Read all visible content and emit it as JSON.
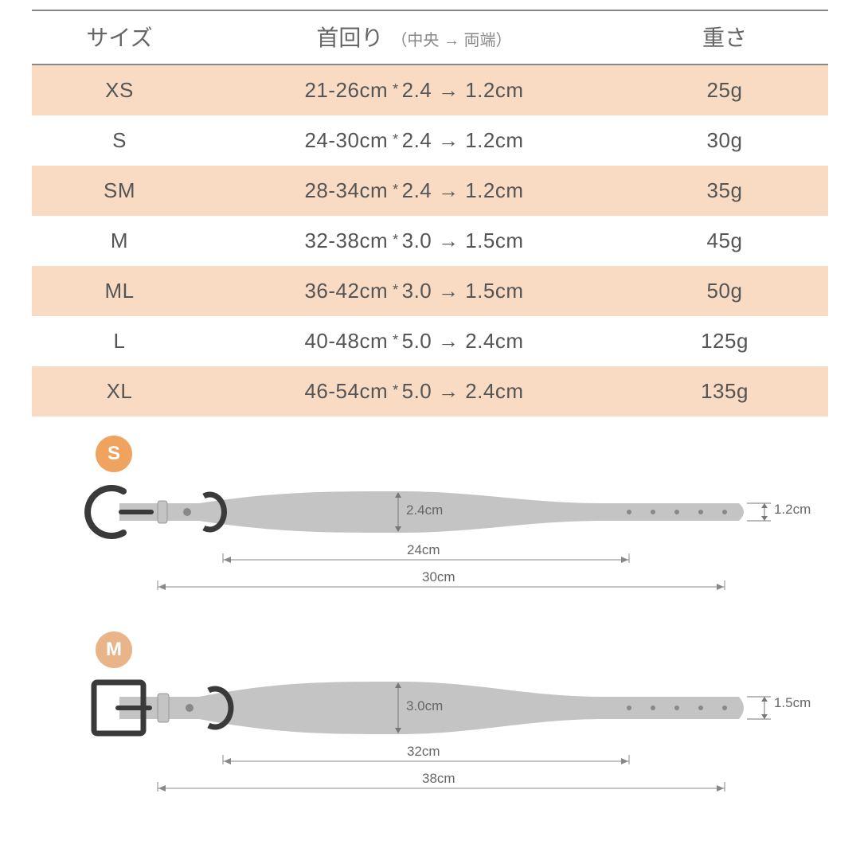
{
  "table": {
    "headers": {
      "size": "サイズ",
      "neck": "首回り",
      "neck_sub": "（中央 → 両端）",
      "weight": "重さ"
    },
    "rows": [
      {
        "size": "XS",
        "neck": "21-26cm",
        "width": "2.4 → 1.2cm",
        "weight": "25g",
        "alt": true
      },
      {
        "size": "S",
        "neck": "24-30cm",
        "width": "2.4 → 1.2cm",
        "weight": "30g",
        "alt": false
      },
      {
        "size": "SM",
        "neck": "28-34cm",
        "width": "2.4 → 1.2cm",
        "weight": "35g",
        "alt": true
      },
      {
        "size": "M",
        "neck": "32-38cm",
        "width": "3.0 → 1.5cm",
        "weight": "45g",
        "alt": false
      },
      {
        "size": "ML",
        "neck": "36-42cm",
        "width": "3.0 → 1.5cm",
        "weight": "50g",
        "alt": true
      },
      {
        "size": "L",
        "neck": "40-48cm",
        "width": "5.0 → 2.4cm",
        "weight": "125g",
        "alt": false
      },
      {
        "size": "XL",
        "neck": "46-54cm",
        "width": "5.0 → 2.4cm",
        "weight": "135g",
        "alt": true
      }
    ],
    "colors": {
      "alt_row_bg": "#f8dbc2",
      "border": "#888888",
      "text": "#666666"
    }
  },
  "diagrams": {
    "collar_fill": "#c4c4c4",
    "buckle_stroke": "#3a3a3a",
    "dim_color": "#888888",
    "s": {
      "badge_label": "S",
      "badge_color": "#f0a35e",
      "center_w": "2.4cm",
      "end_w": "1.2cm",
      "len_short": "24cm",
      "len_long": "30cm"
    },
    "m": {
      "badge_label": "M",
      "badge_color": "#e8b488",
      "center_w": "3.0cm",
      "end_w": "1.5cm",
      "len_short": "32cm",
      "len_long": "38cm"
    }
  }
}
